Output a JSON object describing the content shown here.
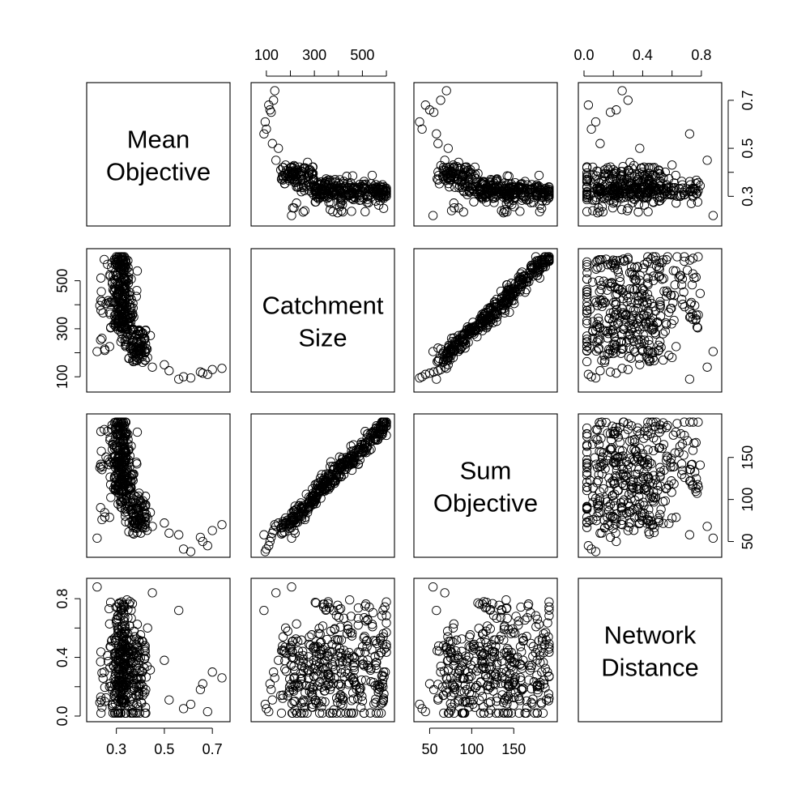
{
  "chart_data": {
    "type": "scatter",
    "layout": "pairs-matrix",
    "variables": [
      {
        "key": "mean_objective",
        "label_lines": [
          "Mean",
          "Objective"
        ],
        "range": [
          0.2,
          0.75
        ],
        "ticks": [
          0.3,
          0.5,
          0.7
        ],
        "ticks_right": [
          0.3,
          0.4,
          0.5,
          0.7
        ],
        "tick_labels_bottom": [
          "0.3",
          "0.5",
          "0.7"
        ],
        "tick_labels_right": [
          "0.3",
          "0.5",
          "0.7"
        ]
      },
      {
        "key": "catchment_size",
        "label_lines": [
          "Catchment",
          "Size"
        ],
        "range": [
          60,
          610
        ],
        "ticks": [
          100,
          200,
          300,
          400,
          500,
          600
        ],
        "tick_labels_top": [
          "100",
          "300",
          "500"
        ],
        "ticks_left": [
          100,
          200,
          300,
          400,
          500
        ],
        "tick_labels_left": [
          "100",
          "300",
          "500"
        ]
      },
      {
        "key": "sum_objective",
        "label_lines": [
          "Sum",
          "Objective"
        ],
        "range": [
          38,
          195
        ],
        "ticks": [
          50,
          100,
          150
        ],
        "tick_labels_bottom": [
          "50",
          "100",
          "150"
        ],
        "tick_labels_right": [
          "50",
          "100",
          "150"
        ]
      },
      {
        "key": "network_distance",
        "label_lines": [
          "Network",
          "Distance"
        ],
        "range": [
          0.0,
          0.9
        ],
        "ticks": [
          0.0,
          0.2,
          0.4,
          0.6,
          0.8
        ],
        "tick_labels_top": [
          "0.0",
          "0.4",
          "0.8"
        ],
        "tick_labels_left": [
          "0.0",
          "0.4",
          "0.8"
        ]
      }
    ],
    "n_points": 400,
    "point_shape": "open-circle",
    "point_color": "#000000",
    "grid": false,
    "legend": "none",
    "observations_note_free": true,
    "clusters": {
      "outliers": [
        {
          "c": 95,
          "m": 0.61,
          "s": 38,
          "d": 0.08
        },
        {
          "c": 100,
          "m": 0.58,
          "s": 41,
          "d": 0.05
        },
        {
          "c": 110,
          "m": 0.68,
          "s": 45,
          "d": 0.03
        },
        {
          "c": 115,
          "m": 0.66,
          "s": 50,
          "d": 0.22
        },
        {
          "c": 120,
          "m": 0.65,
          "s": 55,
          "d": 0.18
        },
        {
          "c": 125,
          "m": 0.52,
          "s": 60,
          "d": 0.11
        },
        {
          "c": 130,
          "m": 0.7,
          "s": 63,
          "d": 0.3
        },
        {
          "c": 135,
          "m": 0.74,
          "s": 70,
          "d": 0.26
        },
        {
          "c": 150,
          "m": 0.5,
          "s": 72,
          "d": 0.38
        },
        {
          "c": 160,
          "m": 0.41,
          "s": 66,
          "d": 0.14
        },
        {
          "c": 170,
          "m": 0.42,
          "s": 74,
          "d": 0.44
        },
        {
          "c": 180,
          "m": 0.43,
          "s": 78,
          "d": 0.6
        },
        {
          "c": 90,
          "m": 0.56,
          "s": 58,
          "d": 0.72
        },
        {
          "c": 140,
          "m": 0.45,
          "s": 68,
          "d": 0.84
        },
        {
          "c": 205,
          "m": 0.22,
          "s": 54,
          "d": 0.88
        },
        {
          "c": 260,
          "m": 0.24,
          "s": 76,
          "d": 0.06
        }
      ]
    }
  }
}
